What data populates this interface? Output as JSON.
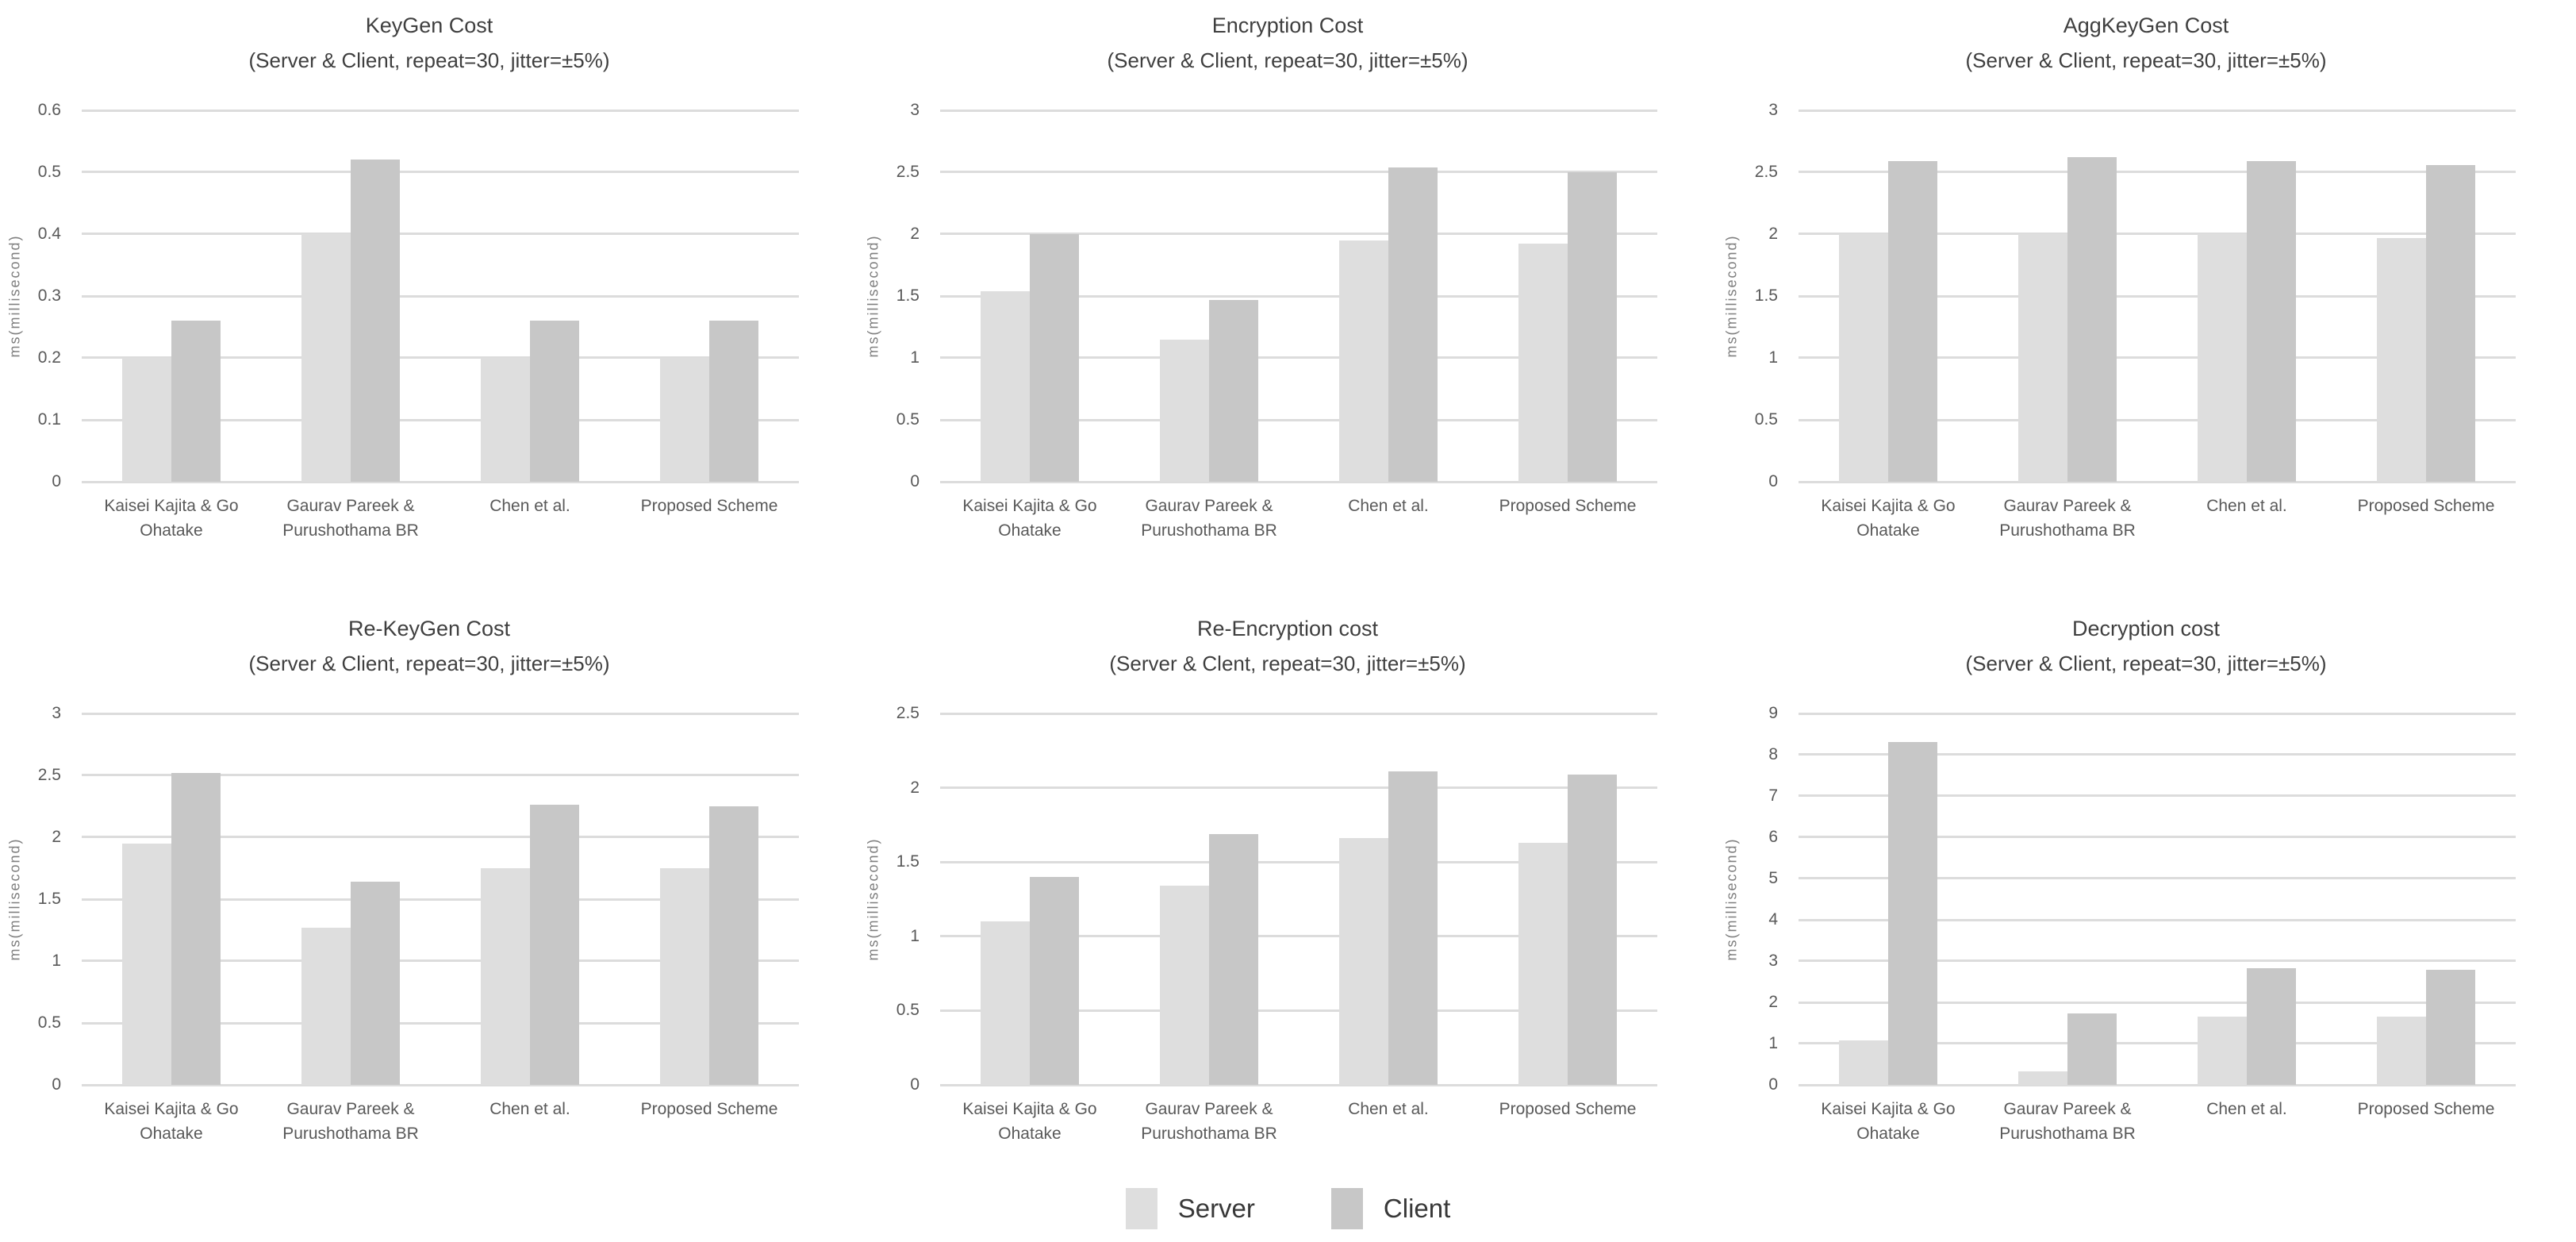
{
  "page": {
    "background": "#ffffff"
  },
  "colors": {
    "server": "#dedede",
    "client": "#c7c7c7",
    "gridline": "#dcdcdc",
    "title_text": "#3f3f3f",
    "tick_text": "#595959",
    "axis_label_text": "#7f7f7f",
    "legend_text": "#383838"
  },
  "legend": {
    "items": [
      {
        "label": "Server",
        "color": "#dedede"
      },
      {
        "label": "Client",
        "color": "#c7c7c7"
      }
    ],
    "position": "bottom-center"
  },
  "chart_data": [
    {
      "type": "bar",
      "title": "KeyGen Cost",
      "subtitle": "(Server & Client, repeat=30, jitter=±5%)",
      "ylabel": "ms(millisecond)",
      "ylim": [
        0,
        0.6
      ],
      "ystep": 0.1,
      "yticks": [
        "0.6",
        "0.5",
        "0.4",
        "0.3",
        "0.2",
        "0.1",
        "0"
      ],
      "grid": true,
      "categories": [
        "Kaisei Kajita & Go Ohatake",
        "Gaurav Pareek & Purushothama BR",
        "Chen et al.",
        "Proposed Scheme"
      ],
      "series": [
        {
          "name": "Server",
          "values": [
            0.2,
            0.4,
            0.2,
            0.2
          ]
        },
        {
          "name": "Client",
          "values": [
            0.26,
            0.52,
            0.26,
            0.26
          ]
        }
      ]
    },
    {
      "type": "bar",
      "title": "Encryption Cost",
      "subtitle": "(Server & Client, repeat=30, jitter=±5%)",
      "ylabel": "ms(millisecond)",
      "ylim": [
        0,
        3
      ],
      "ystep": 0.5,
      "yticks": [
        "3",
        "2.5",
        "2",
        "1.5",
        "1",
        "0.5",
        "0"
      ],
      "grid": true,
      "categories": [
        "Kaisei Kajita & Go Ohatake",
        "Gaurav Pareek & Purushothama BR",
        "Chen et al.",
        "Proposed Scheme"
      ],
      "series": [
        {
          "name": "Server",
          "values": [
            1.54,
            1.15,
            1.95,
            1.92
          ]
        },
        {
          "name": "Client",
          "values": [
            2.0,
            1.47,
            2.54,
            2.5
          ]
        }
      ]
    },
    {
      "type": "bar",
      "title": "AggKeyGen Cost",
      "subtitle": "(Server & Client, repeat=30, jitter=±5%)",
      "ylabel": "ms(millisecond)",
      "ylim": [
        0,
        3
      ],
      "ystep": 0.5,
      "yticks": [
        "3",
        "2.5",
        "2",
        "1.5",
        "1",
        "0.5",
        "0"
      ],
      "grid": true,
      "categories": [
        "Kaisei Kajita & Go Ohatake",
        "Gaurav Pareek & Purushothama BR",
        "Chen et al.",
        "Proposed Scheme"
      ],
      "series": [
        {
          "name": "Server",
          "values": [
            2.0,
            2.0,
            2.0,
            1.97
          ]
        },
        {
          "name": "Client",
          "values": [
            2.59,
            2.62,
            2.59,
            2.56
          ]
        }
      ]
    },
    {
      "type": "bar",
      "title": "Re-KeyGen Cost",
      "subtitle": "(Server & Client, repeat=30, jitter=±5%)",
      "ylabel": "ms(millisecond)",
      "ylim": [
        0,
        3
      ],
      "ystep": 0.5,
      "yticks": [
        "3",
        "2.5",
        "2",
        "1.5",
        "1",
        "0.5",
        "0"
      ],
      "grid": true,
      "categories": [
        "Kaisei Kajita & Go Ohatake",
        "Gaurav Pareek & Purushothama BR",
        "Chen et al.",
        "Proposed Scheme"
      ],
      "series": [
        {
          "name": "Server",
          "values": [
            1.95,
            1.27,
            1.75,
            1.75
          ]
        },
        {
          "name": "Client",
          "values": [
            2.52,
            1.64,
            2.26,
            2.25
          ]
        }
      ]
    },
    {
      "type": "bar",
      "title": "Re-Encryption cost",
      "subtitle": "(Server & Clent, repeat=30, jitter=±5%)",
      "ylabel": "ms(millisecond)",
      "ylim": [
        0,
        2.5
      ],
      "ystep": 0.5,
      "yticks": [
        "2.5",
        "2",
        "1.5",
        "1",
        "0.5",
        "0"
      ],
      "grid": true,
      "categories": [
        "Kaisei Kajita & Go Ohatake",
        "Gaurav Pareek & Purushothama BR",
        "Chen et al.",
        "Proposed Scheme"
      ],
      "series": [
        {
          "name": "Server",
          "values": [
            1.1,
            1.34,
            1.66,
            1.63
          ]
        },
        {
          "name": "Client",
          "values": [
            1.4,
            1.69,
            2.11,
            2.09
          ]
        }
      ]
    },
    {
      "type": "bar",
      "title": "Decryption cost",
      "subtitle": "(Server & Client, repeat=30, jitter=±5%)",
      "ylabel": "ms(millisecond)",
      "ylim": [
        0,
        9
      ],
      "ystep": 1,
      "yticks": [
        "9",
        "8",
        "7",
        "6",
        "5",
        "4",
        "3",
        "2",
        "1",
        "0"
      ],
      "grid": true,
      "categories": [
        "Kaisei Kajita & Go Ohatake",
        "Gaurav Pareek & Purushothama BR",
        "Chen et al.",
        "Proposed Scheme"
      ],
      "series": [
        {
          "name": "Server",
          "values": [
            1.07,
            0.33,
            1.65,
            1.65
          ]
        },
        {
          "name": "Client",
          "values": [
            8.3,
            1.74,
            2.83,
            2.78
          ]
        }
      ]
    }
  ]
}
